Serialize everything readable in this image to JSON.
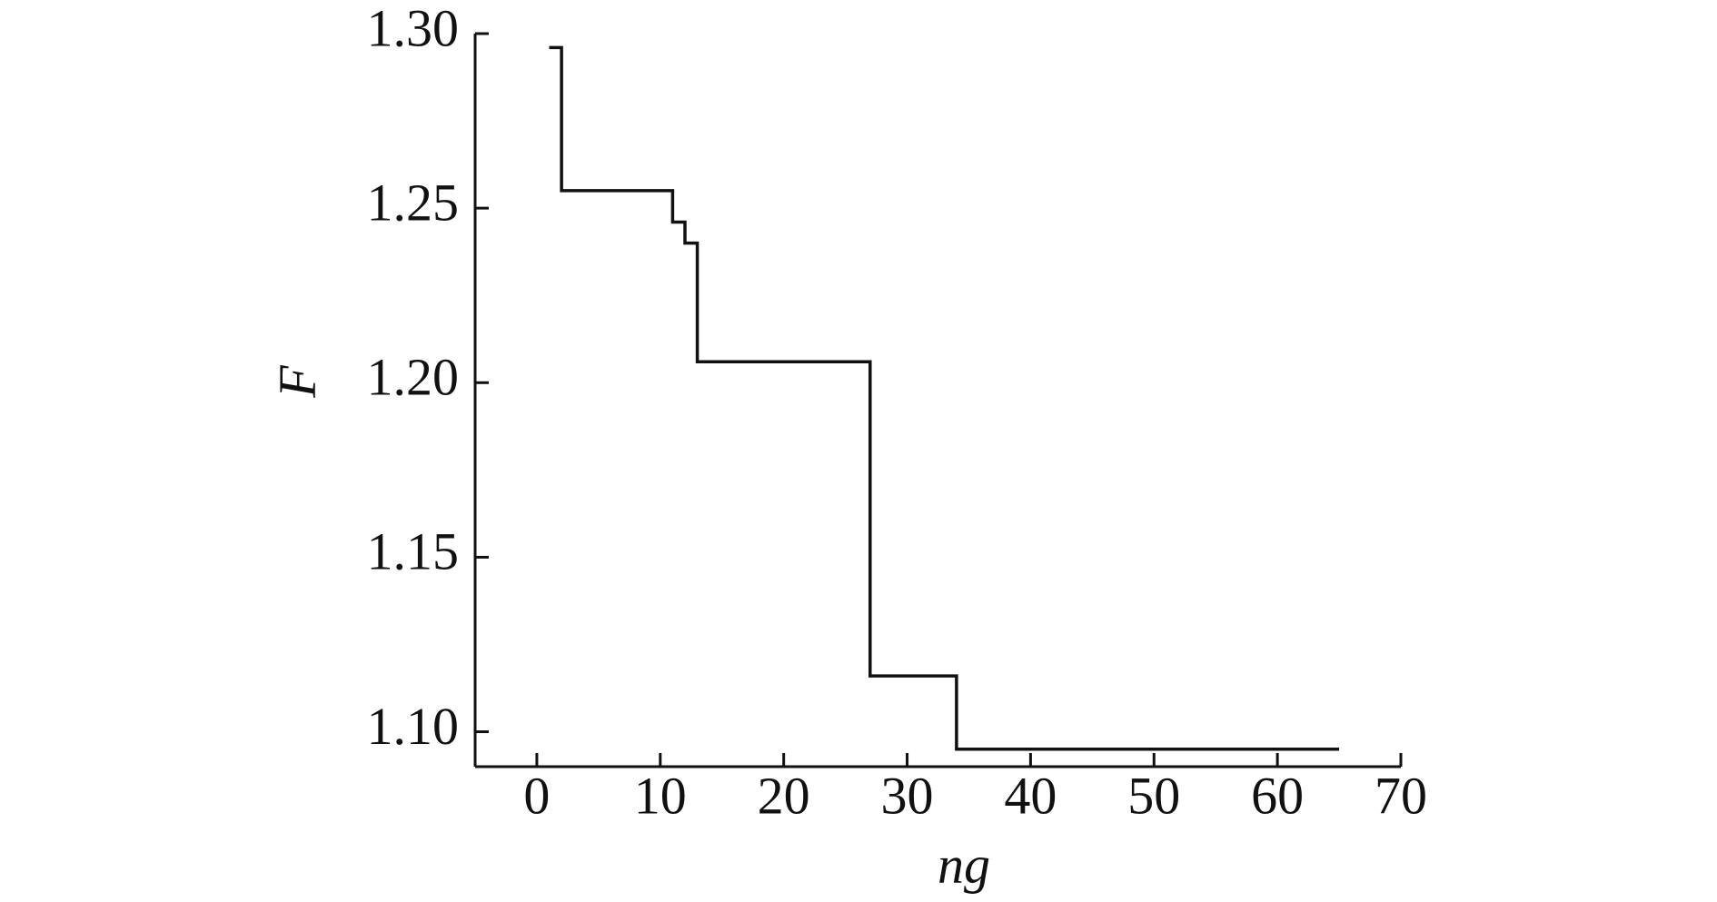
{
  "chart_data": {
    "type": "line",
    "step": "post",
    "x": [
      1,
      2,
      11,
      12,
      13,
      27,
      34,
      65
    ],
    "values": [
      1.296,
      1.255,
      1.246,
      1.24,
      1.206,
      1.116,
      1.095,
      1.095
    ],
    "color": "#111111",
    "xlabel": "ng",
    "ylabel": "F",
    "xlim": [
      -5,
      70
    ],
    "xticks": [
      0,
      10,
      20,
      30,
      40,
      50,
      60,
      70
    ],
    "ylim": [
      1.09,
      1.3
    ],
    "yticks": [
      {
        "value": 1.1,
        "label": "1.10"
      },
      1.15,
      {
        "value": 1.2,
        "label": "1.20"
      },
      1.25,
      {
        "value": 1.3,
        "label": "1.30"
      }
    ],
    "grid": false
  }
}
